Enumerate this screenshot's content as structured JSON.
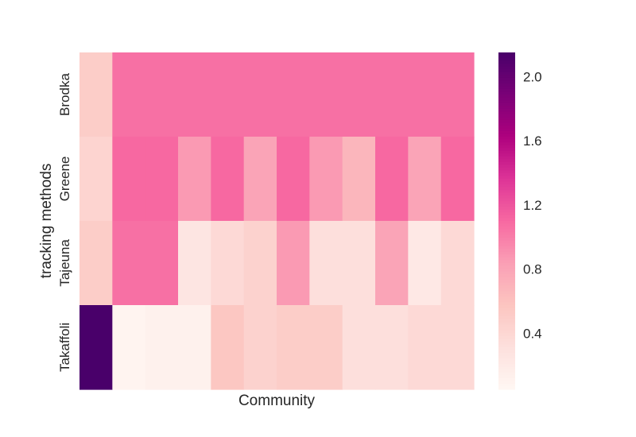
{
  "chart_data": {
    "type": "heatmap",
    "title": "",
    "xlabel": "Community",
    "ylabel": "tracking methods",
    "rows": [
      "Brodka",
      "Greene",
      "Tajeuna",
      "Takaffoli"
    ],
    "columns_count": 12,
    "values": [
      [
        0.5,
        1.06,
        1.06,
        1.06,
        1.06,
        1.06,
        1.06,
        1.06,
        1.06,
        1.06,
        1.06,
        1.06
      ],
      [
        0.43,
        1.1,
        1.1,
        0.86,
        1.1,
        0.8,
        1.1,
        0.86,
        0.68,
        1.1,
        0.8,
        1.1
      ],
      [
        0.5,
        1.06,
        1.06,
        0.25,
        0.38,
        0.45,
        0.86,
        0.32,
        0.32,
        0.8,
        0.22,
        0.38
      ],
      [
        2.15,
        0.08,
        0.12,
        0.12,
        0.56,
        0.45,
        0.5,
        0.5,
        0.32,
        0.32,
        0.38,
        0.38
      ]
    ],
    "colorbar": {
      "vmin": 0.05,
      "vmax": 2.15,
      "ticks": [
        "0.4",
        "0.8",
        "1.2",
        "1.6",
        "2.0"
      ],
      "tick_values": [
        0.4,
        0.8,
        1.2,
        1.6,
        2.0
      ],
      "colormap": "RdPu",
      "stops": [
        "#fff7f3",
        "#fde0dd",
        "#fcc5c0",
        "#fa9fb5",
        "#f768a1",
        "#dd3497",
        "#ae017e",
        "#7a0177",
        "#49006a"
      ]
    },
    "grid": false
  }
}
